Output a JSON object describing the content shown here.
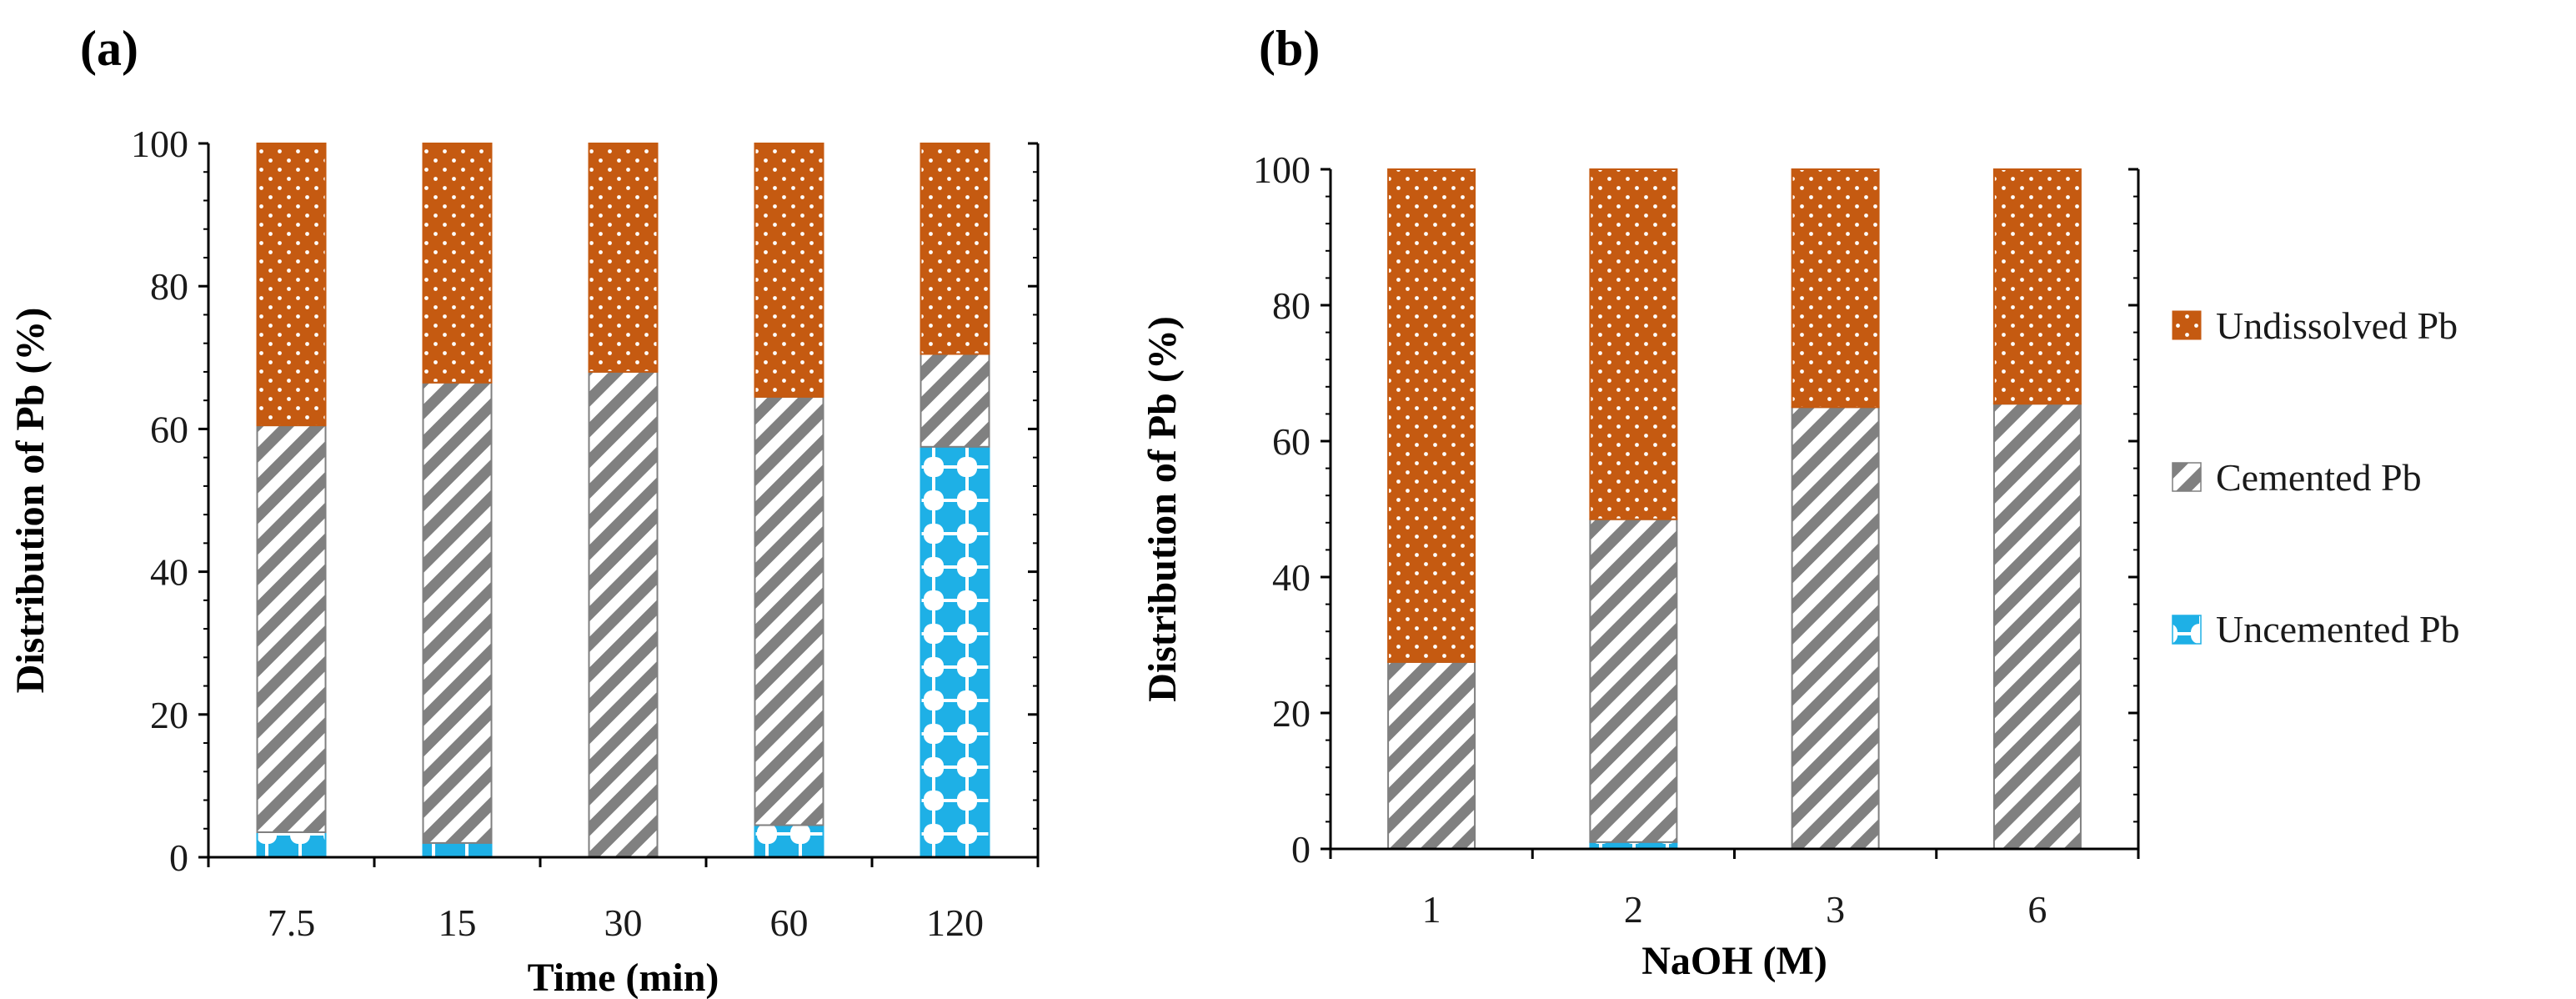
{
  "colors": {
    "undissolved": "#c55a11",
    "cemented": "#808080",
    "uncemented": "#1eb0e6",
    "axis": "#000000"
  },
  "legend": {
    "undissolved": "Undissolved Pb",
    "cemented": "Cemented Pb",
    "uncemented": "Uncemented Pb"
  },
  "chart_data": [
    {
      "panel": "(a)",
      "type": "bar",
      "stacked": true,
      "xlabel": "Time (min)",
      "ylabel": "Distribution of Pb (%)",
      "ylim": [
        0,
        100
      ],
      "yticks": [
        0,
        20,
        40,
        60,
        80,
        100
      ],
      "categories": [
        "7.5",
        "15",
        "30",
        "60",
        "120"
      ],
      "series": [
        {
          "name": "Uncemented Pb",
          "key": "uncemented",
          "values": [
            3.5,
            2,
            0,
            4.5,
            57.5
          ]
        },
        {
          "name": "Cemented Pb",
          "key": "cemented",
          "values": [
            57,
            64.5,
            68,
            60,
            13
          ]
        },
        {
          "name": "Undissolved Pb",
          "key": "undissolved",
          "values": [
            39.5,
            33.5,
            32,
            35.5,
            29.5
          ]
        }
      ]
    },
    {
      "panel": "(b)",
      "type": "bar",
      "stacked": true,
      "xlabel": "NaOH (M)",
      "ylabel": "Distribution of Pb (%)",
      "ylim": [
        0,
        100
      ],
      "yticks": [
        0,
        20,
        40,
        60,
        80,
        100
      ],
      "categories": [
        "1",
        "2",
        "3",
        "6"
      ],
      "series": [
        {
          "name": "Uncemented Pb",
          "key": "uncemented",
          "values": [
            0,
            1,
            0,
            0
          ]
        },
        {
          "name": "Cemented Pb",
          "key": "cemented",
          "values": [
            27.5,
            47.5,
            65,
            65.5
          ]
        },
        {
          "name": "Undissolved Pb",
          "key": "undissolved",
          "values": [
            72.5,
            51.5,
            35,
            34.5
          ]
        }
      ]
    }
  ]
}
